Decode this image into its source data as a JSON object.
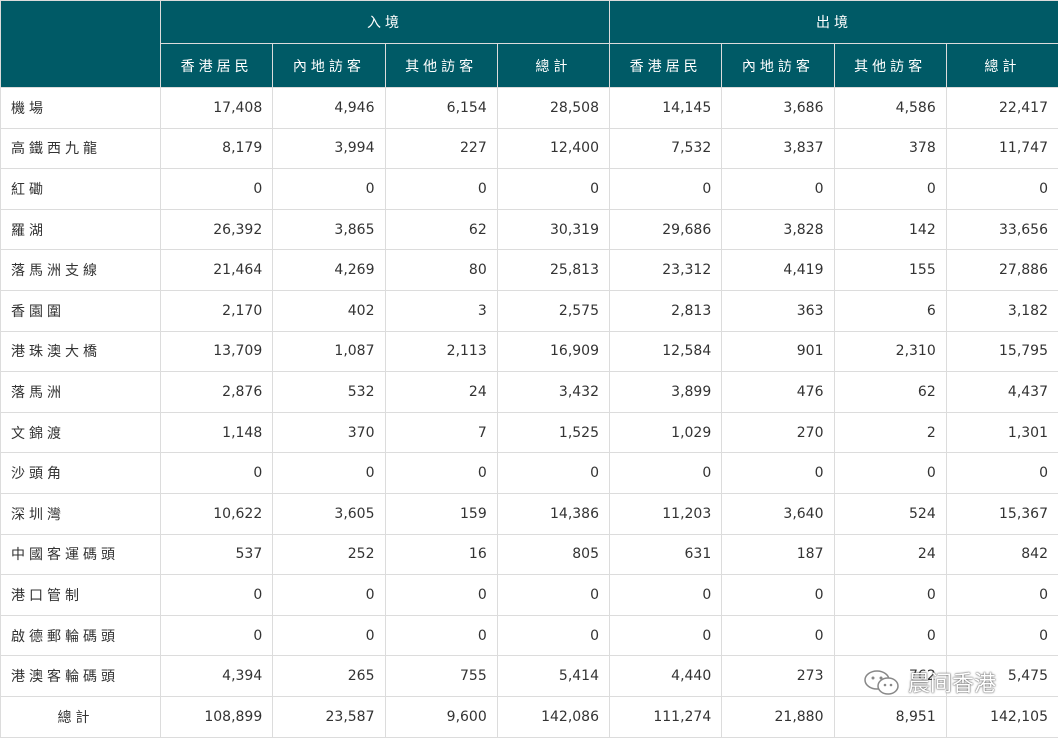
{
  "header": {
    "groups": [
      "入境",
      "出境"
    ],
    "columns": [
      "香港居民",
      "內地訪客",
      "其他訪客",
      "總計",
      "香港居民",
      "內地訪客",
      "其他訪客",
      "總計"
    ]
  },
  "table": {
    "rows": [
      [
        "機場",
        "17,408",
        "4,946",
        "6,154",
        "28,508",
        "14,145",
        "3,686",
        "4,586",
        "22,417"
      ],
      [
        "高鐵西九龍",
        "8,179",
        "3,994",
        "227",
        "12,400",
        "7,532",
        "3,837",
        "378",
        "11,747"
      ],
      [
        "紅磡",
        "0",
        "0",
        "0",
        "0",
        "0",
        "0",
        "0",
        "0"
      ],
      [
        "羅湖",
        "26,392",
        "3,865",
        "62",
        "30,319",
        "29,686",
        "3,828",
        "142",
        "33,656"
      ],
      [
        "落馬洲支線",
        "21,464",
        "4,269",
        "80",
        "25,813",
        "23,312",
        "4,419",
        "155",
        "27,886"
      ],
      [
        "香園圍",
        "2,170",
        "402",
        "3",
        "2,575",
        "2,813",
        "363",
        "6",
        "3,182"
      ],
      [
        "港珠澳大橋",
        "13,709",
        "1,087",
        "2,113",
        "16,909",
        "12,584",
        "901",
        "2,310",
        "15,795"
      ],
      [
        "落馬洲",
        "2,876",
        "532",
        "24",
        "3,432",
        "3,899",
        "476",
        "62",
        "4,437"
      ],
      [
        "文錦渡",
        "1,148",
        "370",
        "7",
        "1,525",
        "1,029",
        "270",
        "2",
        "1,301"
      ],
      [
        "沙頭角",
        "0",
        "0",
        "0",
        "0",
        "0",
        "0",
        "0",
        "0"
      ],
      [
        "深圳灣",
        "10,622",
        "3,605",
        "159",
        "14,386",
        "11,203",
        "3,640",
        "524",
        "15,367"
      ],
      [
        "中國客運碼頭",
        "537",
        "252",
        "16",
        "805",
        "631",
        "187",
        "24",
        "842"
      ],
      [
        "港口管制",
        "0",
        "0",
        "0",
        "0",
        "0",
        "0",
        "0",
        "0"
      ],
      [
        "啟德郵輪碼頭",
        "0",
        "0",
        "0",
        "0",
        "0",
        "0",
        "0",
        "0"
      ],
      [
        "港澳客輪碼頭",
        "4,394",
        "265",
        "755",
        "5,414",
        "4,440",
        "273",
        "762",
        "5,475"
      ]
    ],
    "total": [
      "總計",
      "108,899",
      "23,587",
      "9,600",
      "142,086",
      "111,274",
      "21,880",
      "8,951",
      "142,105"
    ]
  },
  "watermark": "晨间香港"
}
